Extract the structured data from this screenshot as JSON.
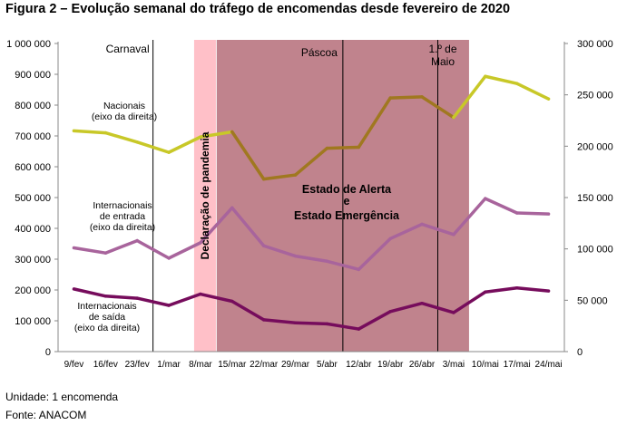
{
  "title": "Figura 2 – Evolução semanal do tráfego de encomendas desde fevereiro de 2020",
  "unit_note": "Unidade: 1 encomenda",
  "source_note": "Fonte: ANACOM",
  "chart_data": {
    "type": "line",
    "categories": [
      "9/fev",
      "16/fev",
      "23/fev",
      "1/mar",
      "8/mar",
      "15/mar",
      "22/mar",
      "29/mar",
      "5/abr",
      "12/abr",
      "19/abr",
      "26/abr",
      "3/mai",
      "10/mai",
      "17/mai",
      "24/mai"
    ],
    "y_left": {
      "ticks": [
        "0",
        "100 000",
        "200 000",
        "300 000",
        "400 000",
        "500 000",
        "600 000",
        "700 000",
        "800 000",
        "900 000",
        "1 000 000"
      ],
      "range": [
        0,
        1000000
      ]
    },
    "y_right": {
      "ticks": [
        "0",
        "50 000",
        "100 000",
        "150 000",
        "200 000",
        "250 000",
        "300 000"
      ],
      "range": [
        0,
        300000
      ]
    },
    "series": [
      {
        "name": "Nacionais\n(eixo da direita)",
        "axis": "right",
        "color_before": "#c8c828",
        "color_during": "#a07820",
        "values": [
          215000,
          213000,
          204000,
          194000,
          209000,
          214000,
          168000,
          172000,
          198000,
          199000,
          247000,
          248000,
          228000,
          268000,
          261000,
          246000
        ]
      },
      {
        "name": "Internacionais\nde entrada\n(eixo da direita)",
        "axis": "right",
        "color_before": "#a8649c",
        "color_during": "#a8649c",
        "values": [
          101000,
          96000,
          108000,
          91000,
          106000,
          140000,
          103000,
          93000,
          88000,
          80000,
          110000,
          124000,
          114000,
          149000,
          135000,
          134000
        ]
      },
      {
        "name": "Internacionais\nde saída\n(eixo da direita)",
        "axis": "right",
        "color_before": "#760c5c",
        "color_during": "#760c5c",
        "values": [
          61000,
          54000,
          52000,
          45000,
          56000,
          49000,
          31000,
          28000,
          27000,
          22000,
          39000,
          47000,
          38000,
          58000,
          62000,
          59000
        ]
      }
    ],
    "annotations": {
      "carnaval": "Carnaval",
      "pascoa": "Páscoa",
      "primeiro_maio": "1.º de\nMaio",
      "pandemia": "Declaração de pandemia",
      "estado_line1": "Estado de Alerta",
      "estado_line2": "e",
      "estado_line3": "Estado Emergência"
    },
    "colors": {
      "pandemia_band": "#ffc0c8",
      "state_band": "#c0838d",
      "axis": "#888888"
    },
    "grid": false
  }
}
